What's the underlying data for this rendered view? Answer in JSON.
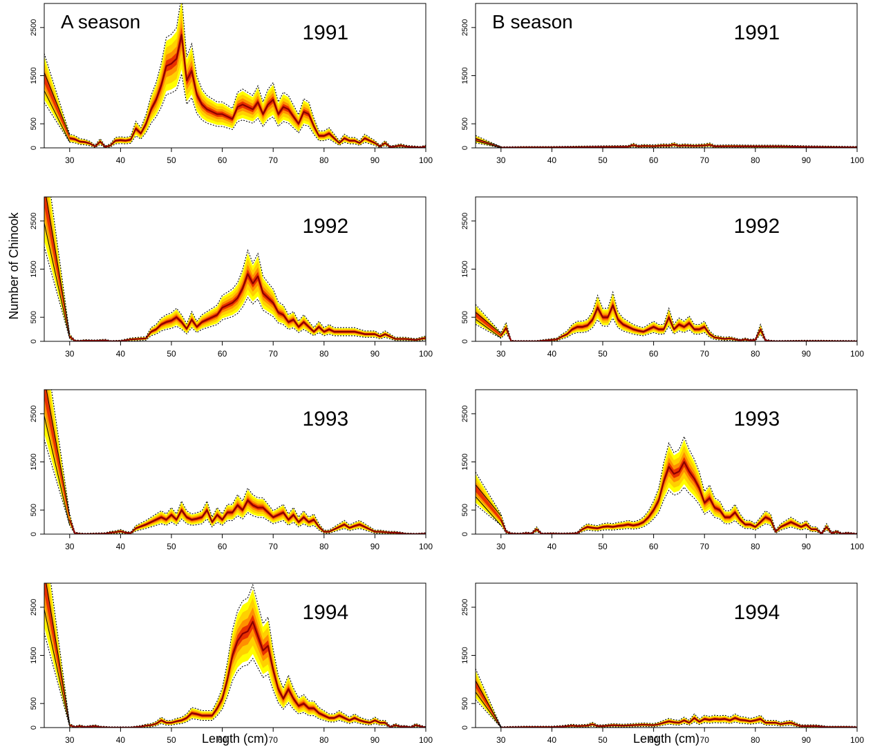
{
  "figure": {
    "ylabel": "Number of Chinook",
    "xlabel": "Length (cm)",
    "season_labels": [
      "A season",
      "B season"
    ]
  },
  "colors": {
    "band_outer": "#ffff00",
    "band_mid": "#ffd000",
    "band_inner": "#ff9000",
    "band_core": "#e83000",
    "median": "#8b0000",
    "ci": "#000000"
  },
  "chart_data": [
    {
      "type": "area",
      "season": "A season",
      "year": "1991",
      "xlim": [
        25,
        100
      ],
      "ylim": [
        0,
        3000
      ],
      "x": [
        25,
        30,
        31,
        32,
        33,
        34,
        35,
        36,
        37,
        38,
        39,
        40,
        41,
        42,
        43,
        44,
        45,
        46,
        47,
        48,
        49,
        50,
        51,
        52,
        53,
        54,
        55,
        56,
        57,
        58,
        59,
        60,
        61,
        62,
        63,
        64,
        65,
        66,
        67,
        68,
        69,
        70,
        71,
        72,
        73,
        74,
        75,
        76,
        77,
        78,
        79,
        80,
        81,
        82,
        83,
        84,
        85,
        86,
        87,
        88,
        89,
        90,
        91,
        92,
        93,
        94,
        95,
        96,
        97,
        98,
        99,
        100
      ],
      "y": [
        1450,
        200,
        180,
        130,
        120,
        90,
        30,
        130,
        20,
        50,
        150,
        160,
        150,
        170,
        400,
        300,
        500,
        800,
        1000,
        1300,
        1700,
        1750,
        1850,
        2350,
        1400,
        1600,
        1100,
        900,
        800,
        750,
        700,
        700,
        650,
        600,
        850,
        900,
        850,
        800,
        950,
        700,
        900,
        1000,
        700,
        850,
        800,
        650,
        500,
        750,
        700,
        450,
        250,
        250,
        300,
        200,
        100,
        200,
        150,
        150,
        100,
        200,
        150,
        100,
        30,
        100,
        20,
        30,
        50,
        30,
        20,
        15,
        10,
        30
      ]
    },
    {
      "type": "area",
      "season": "B season",
      "year": "1991",
      "xlim": [
        25,
        100
      ],
      "ylim": [
        0,
        3000
      ],
      "x": [
        25,
        30,
        35,
        40,
        45,
        50,
        55,
        56,
        57,
        58,
        60,
        62,
        63,
        64,
        65,
        66,
        68,
        70,
        71,
        72,
        75,
        80,
        85,
        90,
        95,
        100
      ],
      "y": [
        180,
        5,
        10,
        10,
        15,
        20,
        25,
        60,
        30,
        40,
        35,
        50,
        45,
        70,
        40,
        50,
        40,
        50,
        65,
        30,
        35,
        30,
        30,
        20,
        15,
        10
      ]
    },
    {
      "type": "area",
      "season": "A season",
      "year": "1992",
      "xlim": [
        25,
        100
      ],
      "ylim": [
        0,
        3000
      ],
      "x": [
        25,
        30,
        31,
        32,
        33,
        35,
        37,
        38,
        40,
        42,
        45,
        46,
        47,
        48,
        49,
        50,
        51,
        52,
        53,
        54,
        55,
        56,
        57,
        58,
        59,
        60,
        61,
        62,
        63,
        64,
        65,
        66,
        67,
        68,
        69,
        70,
        71,
        72,
        73,
        74,
        75,
        76,
        77,
        78,
        79,
        80,
        81,
        82,
        84,
        86,
        88,
        90,
        91,
        92,
        94,
        96,
        98,
        100
      ],
      "y": [
        3000,
        100,
        10,
        5,
        15,
        10,
        20,
        0,
        5,
        40,
        60,
        200,
        250,
        350,
        400,
        430,
        500,
        400,
        260,
        450,
        300,
        400,
        450,
        500,
        550,
        700,
        750,
        800,
        900,
        1100,
        1400,
        1200,
        1350,
        1000,
        900,
        800,
        600,
        550,
        400,
        450,
        300,
        400,
        300,
        200,
        300,
        200,
        250,
        200,
        200,
        200,
        150,
        150,
        100,
        150,
        50,
        50,
        30,
        70
      ]
    },
    {
      "type": "area",
      "season": "B season",
      "year": "1992",
      "xlim": [
        25,
        100
      ],
      "ylim": [
        0,
        3000
      ],
      "x": [
        25,
        30,
        31,
        32,
        33,
        35,
        37,
        38,
        40,
        41,
        42,
        43,
        44,
        45,
        46,
        47,
        48,
        49,
        50,
        51,
        52,
        53,
        54,
        55,
        56,
        57,
        58,
        59,
        60,
        61,
        62,
        63,
        64,
        65,
        66,
        67,
        68,
        69,
        70,
        71,
        72,
        74,
        75,
        76,
        77,
        78,
        79,
        80,
        81,
        82,
        83,
        84,
        90,
        92,
        100
      ],
      "y": [
        560,
        120,
        280,
        5,
        0,
        0,
        0,
        10,
        30,
        40,
        100,
        150,
        250,
        300,
        300,
        330,
        450,
        700,
        500,
        500,
        750,
        450,
        350,
        300,
        250,
        220,
        200,
        250,
        300,
        250,
        250,
        500,
        250,
        350,
        300,
        380,
        250,
        250,
        300,
        150,
        80,
        50,
        60,
        40,
        20,
        40,
        20,
        30,
        250,
        20,
        5,
        0,
        5,
        5,
        0
      ]
    },
    {
      "type": "area",
      "season": "A season",
      "year": "1993",
      "xlim": [
        25,
        100
      ],
      "ylim": [
        0,
        3000
      ],
      "x": [
        25,
        30,
        31,
        32,
        33,
        35,
        37,
        38,
        39,
        40,
        41,
        42,
        43,
        45,
        47,
        48,
        49,
        50,
        51,
        52,
        53,
        54,
        55,
        56,
        57,
        58,
        59,
        60,
        61,
        62,
        63,
        64,
        65,
        66,
        67,
        68,
        69,
        70,
        71,
        72,
        73,
        74,
        75,
        76,
        77,
        78,
        79,
        80,
        81,
        82,
        83,
        84,
        85,
        86,
        87,
        88,
        89,
        90,
        91,
        92,
        93,
        94,
        95,
        96,
        98,
        100
      ],
      "y": [
        3000,
        300,
        20,
        5,
        0,
        5,
        10,
        30,
        40,
        60,
        30,
        20,
        120,
        200,
        300,
        350,
        300,
        400,
        300,
        500,
        350,
        300,
        320,
        350,
        500,
        250,
        400,
        300,
        450,
        450,
        600,
        500,
        700,
        600,
        550,
        550,
        450,
        350,
        400,
        450,
        300,
        400,
        250,
        350,
        250,
        300,
        150,
        50,
        50,
        100,
        150,
        200,
        130,
        170,
        200,
        150,
        100,
        50,
        50,
        40,
        30,
        30,
        20,
        5,
        0,
        10
      ]
    },
    {
      "type": "area",
      "season": "B season",
      "year": "1993",
      "xlim": [
        25,
        100
      ],
      "ylim": [
        0,
        3000
      ],
      "x": [
        25,
        30,
        31,
        32,
        33,
        34,
        35,
        36,
        37,
        38,
        40,
        42,
        44,
        45,
        46,
        47,
        48,
        49,
        50,
        51,
        52,
        53,
        54,
        55,
        56,
        57,
        58,
        59,
        60,
        61,
        62,
        63,
        64,
        65,
        66,
        67,
        68,
        69,
        70,
        71,
        72,
        73,
        74,
        75,
        76,
        77,
        78,
        79,
        80,
        81,
        82,
        83,
        84,
        85,
        86,
        87,
        88,
        89,
        90,
        91,
        92,
        93,
        94,
        95,
        96,
        97,
        98,
        100
      ],
      "y": [
        950,
        300,
        50,
        10,
        5,
        5,
        20,
        10,
        100,
        5,
        10,
        5,
        10,
        20,
        100,
        150,
        130,
        120,
        150,
        160,
        150,
        170,
        180,
        200,
        180,
        200,
        250,
        350,
        500,
        700,
        1100,
        1400,
        1250,
        1300,
        1500,
        1300,
        1150,
        950,
        650,
        750,
        550,
        500,
        350,
        350,
        450,
        300,
        200,
        200,
        150,
        250,
        350,
        300,
        50,
        150,
        200,
        250,
        200,
        150,
        200,
        100,
        100,
        10,
        150,
        20,
        50,
        5,
        20,
        0
      ]
    },
    {
      "type": "area",
      "season": "A season",
      "year": "1994",
      "xlim": [
        25,
        100
      ],
      "ylim": [
        0,
        3000
      ],
      "x": [
        25,
        30,
        31,
        32,
        33,
        34,
        35,
        36,
        37,
        38,
        40,
        42,
        44,
        45,
        46,
        47,
        48,
        49,
        50,
        51,
        52,
        53,
        54,
        55,
        56,
        57,
        58,
        59,
        60,
        61,
        62,
        63,
        64,
        65,
        66,
        67,
        68,
        69,
        70,
        71,
        72,
        73,
        74,
        75,
        76,
        77,
        78,
        79,
        80,
        81,
        82,
        83,
        84,
        85,
        86,
        87,
        88,
        89,
        90,
        91,
        92,
        93,
        94,
        95,
        96,
        97,
        98,
        100
      ],
      "y": [
        3000,
        50,
        10,
        30,
        10,
        20,
        30,
        10,
        5,
        0,
        0,
        0,
        20,
        40,
        50,
        80,
        150,
        100,
        100,
        130,
        150,
        200,
        300,
        280,
        250,
        250,
        250,
        400,
        600,
        1000,
        1500,
        1800,
        1950,
        2000,
        2200,
        1900,
        1600,
        1700,
        1200,
        800,
        600,
        800,
        600,
        450,
        500,
        400,
        400,
        300,
        250,
        200,
        200,
        250,
        200,
        150,
        200,
        150,
        120,
        100,
        150,
        100,
        100,
        10,
        50,
        20,
        20,
        5,
        50,
        0
      ]
    },
    {
      "type": "area",
      "season": "B season",
      "year": "1994",
      "xlim": [
        25,
        100
      ],
      "ylim": [
        0,
        3000
      ],
      "x": [
        25,
        30,
        32,
        35,
        40,
        42,
        44,
        45,
        47,
        48,
        49,
        50,
        52,
        54,
        56,
        58,
        60,
        61,
        62,
        63,
        64,
        65,
        66,
        67,
        68,
        69,
        70,
        71,
        72,
        73,
        74,
        75,
        76,
        77,
        78,
        79,
        80,
        81,
        82,
        83,
        84,
        85,
        86,
        87,
        88,
        89,
        90,
        92,
        94,
        96,
        98,
        100
      ],
      "y": [
        900,
        0,
        5,
        10,
        10,
        20,
        40,
        30,
        40,
        70,
        30,
        30,
        50,
        40,
        50,
        60,
        50,
        70,
        100,
        130,
        110,
        100,
        150,
        100,
        200,
        120,
        180,
        160,
        180,
        170,
        180,
        150,
        200,
        160,
        150,
        130,
        150,
        180,
        100,
        100,
        100,
        70,
        90,
        100,
        60,
        30,
        30,
        30,
        10,
        10,
        10,
        5
      ]
    }
  ]
}
